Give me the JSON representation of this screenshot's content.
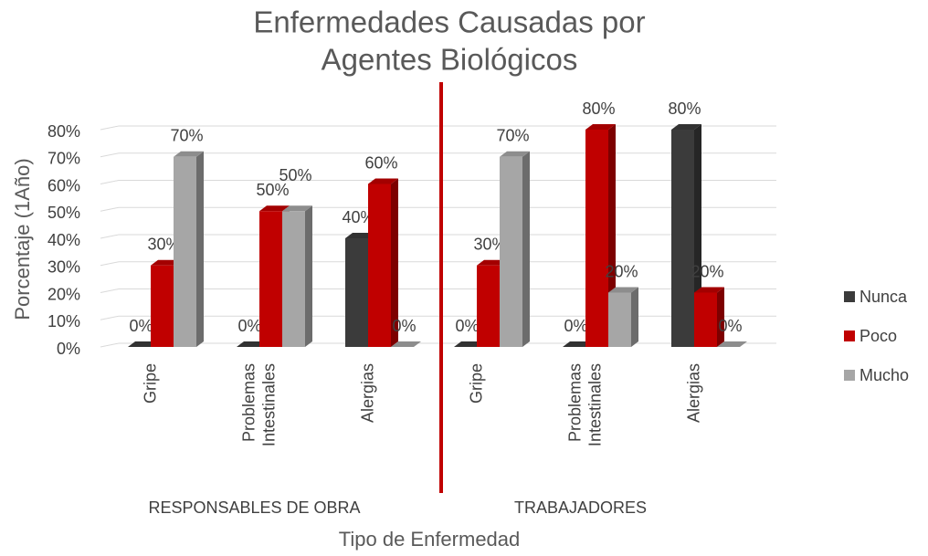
{
  "chart_data": {
    "type": "bar3d",
    "title": [
      "Enfermedades Causadas por",
      "Agentes Biológicos"
    ],
    "y_label": "Porcentaje (1Año)",
    "x_label": "Tipo de Enfermedad",
    "groups": [
      {
        "name": "RESPONSABLES DE OBRA",
        "size": 3
      },
      {
        "name": "TRABAJADORES",
        "size": 3
      }
    ],
    "categories": [
      [
        "Gripe"
      ],
      [
        "Problemas",
        "Intestinales"
      ],
      [
        "Alergias"
      ],
      [
        "Gripe"
      ],
      [
        "Problemas",
        "Intestinales"
      ],
      [
        "Alergias"
      ]
    ],
    "series": [
      {
        "name": "Nunca",
        "color": "#3b3b3b",
        "values": [
          0,
          0,
          40,
          0,
          0,
          80
        ],
        "value_labels": [
          "0%",
          "0%",
          "40%",
          "0%",
          "0%",
          "80%"
        ]
      },
      {
        "name": "Poco",
        "color": "#c00000",
        "values": [
          30,
          50,
          60,
          30,
          80,
          20
        ],
        "value_labels": [
          "30%",
          "50%",
          "60%",
          "30%",
          "80%",
          "20%"
        ]
      },
      {
        "name": "Mucho",
        "color": "#a6a6a6",
        "values": [
          70,
          50,
          0,
          70,
          20,
          0
        ],
        "value_labels": [
          "70%",
          "50%",
          "0%",
          "70%",
          "20%",
          "0%"
        ]
      }
    ],
    "ylim": [
      0,
      80
    ],
    "yticks": [
      {
        "value": 0,
        "label": "0%"
      },
      {
        "value": 10,
        "label": "10%"
      },
      {
        "value": 20,
        "label": "20%"
      },
      {
        "value": 30,
        "label": "30%"
      },
      {
        "value": 40,
        "label": "40%"
      },
      {
        "value": 50,
        "label": "50%"
      },
      {
        "value": 60,
        "label": "60%"
      },
      {
        "value": 70,
        "label": "70%"
      },
      {
        "value": 80,
        "label": "80%"
      }
    ],
    "grid": true,
    "legend": "right"
  }
}
